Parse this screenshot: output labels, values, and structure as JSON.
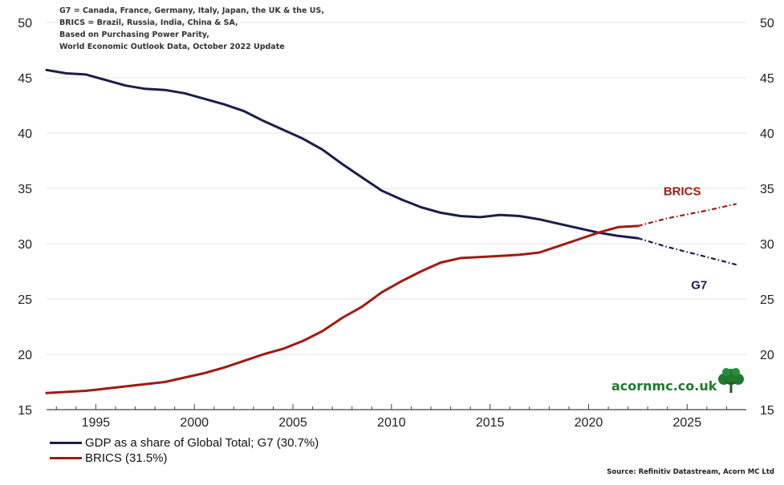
{
  "notes": [
    "G7 = Canada, France, Germany, Italy, Japan, the UK & the US,",
    "BRICS = Brazil, Russia, India, China & SA,",
    "Based on Purchasing Power Parity,",
    "World Economic Outlook Data, October 2022 Update"
  ],
  "source": "Source: Refinitiv Datastream, Acorn MC Ltd",
  "brand": "acornmc.co.uk",
  "colors": {
    "g7": "#1a1d4d",
    "brics": "#a11a10",
    "brand": "#1f7a2e"
  },
  "chart_data": {
    "type": "line",
    "title": "",
    "xlabel": "",
    "ylabel": "",
    "xlim": [
      1992.5,
      2028
    ],
    "ylim": [
      15,
      50
    ],
    "x_ticks": [
      1995,
      2000,
      2005,
      2010,
      2015,
      2020,
      2025
    ],
    "x_tick_labels": [
      "1995",
      "2000",
      "2005",
      "2010",
      "2015",
      "2020",
      "2025"
    ],
    "y_ticks": [
      15,
      20,
      25,
      30,
      35,
      40,
      45,
      50
    ],
    "y_tick_labels": [
      "15",
      "20",
      "25",
      "30",
      "35",
      "40",
      "45",
      "50"
    ],
    "legend_position": "bottom-left",
    "legend": [
      "GDP as a share of Global Total; G7 (30.7%)",
      "BRICS (31.5%)"
    ],
    "annotations": [
      "BRICS",
      "G7"
    ],
    "series": [
      {
        "name": "G7",
        "legend_label": "GDP as a share of Global Total; G7 (30.7%)",
        "color": "#1a1d4d",
        "x": [
          1992.5,
          1993.5,
          1994.5,
          1995.5,
          1996.5,
          1997.5,
          1998.5,
          1999.5,
          2000.5,
          2001.5,
          2002.5,
          2003.5,
          2004.5,
          2005.5,
          2006.5,
          2007.5,
          2008.5,
          2009.5,
          2010.5,
          2011.5,
          2012.5,
          2013.5,
          2014.5,
          2015.5,
          2016.5,
          2017.5,
          2018.5,
          2019.5,
          2020.5,
          2021.5,
          2022.5
        ],
        "values": [
          45.7,
          45.4,
          45.3,
          44.8,
          44.3,
          44.0,
          43.9,
          43.6,
          43.1,
          42.6,
          42.0,
          41.1,
          40.3,
          39.5,
          38.5,
          37.2,
          36.0,
          34.8,
          34.0,
          33.3,
          32.8,
          32.5,
          32.4,
          32.6,
          32.5,
          32.2,
          31.8,
          31.4,
          31.0,
          30.7,
          30.5
        ],
        "projection": {
          "x": [
            2022.5,
            2024,
            2026,
            2027.5
          ],
          "values": [
            30.5,
            29.7,
            28.8,
            28.1
          ]
        }
      },
      {
        "name": "BRICS",
        "legend_label": "BRICS (31.5%)",
        "color": "#a11a10",
        "x": [
          1992.5,
          1993.5,
          1994.5,
          1995.5,
          1996.5,
          1997.5,
          1998.5,
          1999.5,
          2000.5,
          2001.5,
          2002.5,
          2003.5,
          2004.5,
          2005.5,
          2006.5,
          2007.5,
          2008.5,
          2009.5,
          2010.5,
          2011.5,
          2012.5,
          2013.5,
          2014.5,
          2015.5,
          2016.5,
          2017.5,
          2018.5,
          2019.5,
          2020.5,
          2021.5,
          2022.5
        ],
        "values": [
          16.5,
          16.6,
          16.7,
          16.9,
          17.1,
          17.3,
          17.5,
          17.9,
          18.3,
          18.8,
          19.4,
          20.0,
          20.5,
          21.2,
          22.1,
          23.3,
          24.3,
          25.6,
          26.6,
          27.5,
          28.3,
          28.7,
          28.8,
          28.9,
          29.0,
          29.2,
          29.8,
          30.4,
          31.0,
          31.5,
          31.6
        ],
        "projection": {
          "x": [
            2022.5,
            2024,
            2026,
            2027.5
          ],
          "values": [
            31.6,
            32.3,
            33.0,
            33.6
          ]
        }
      }
    ]
  }
}
